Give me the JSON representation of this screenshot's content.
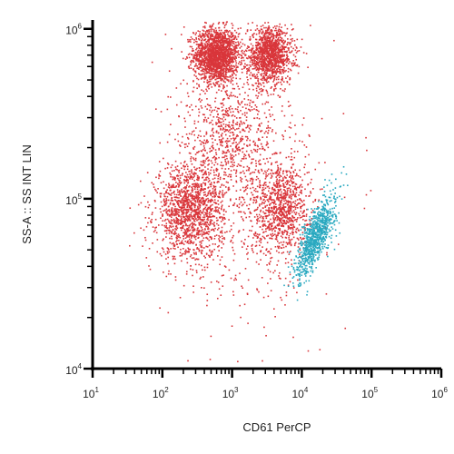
{
  "chart_data": {
    "type": "scatter",
    "title": "",
    "xlabel": "CD61 PerCP",
    "ylabel": "SS-A :: SS INT LIN",
    "x_scale": "log",
    "y_scale": "log",
    "xlim": [
      10,
      1000000
    ],
    "ylim": [
      10000,
      1100000
    ],
    "grid": false,
    "legend": "none",
    "x_ticks": [
      {
        "base": "10",
        "exp": "1",
        "value": 10
      },
      {
        "base": "10",
        "exp": "2",
        "value": 100
      },
      {
        "base": "10",
        "exp": "3",
        "value": 1000
      },
      {
        "base": "10",
        "exp": "4",
        "value": 10000
      },
      {
        "base": "10",
        "exp": "5",
        "value": 100000
      },
      {
        "base": "10",
        "exp": "6",
        "value": 1000000
      }
    ],
    "y_ticks": [
      {
        "base": "10",
        "exp": "4",
        "value": 10000
      },
      {
        "base": "10",
        "exp": "5",
        "value": 100000
      },
      {
        "base": "10",
        "exp": "6",
        "value": 1000000
      }
    ],
    "series": [
      {
        "color": "#d9363b",
        "clusters": [
          {
            "x": 600,
            "y": 700000,
            "count": 1800,
            "sx": 0.16,
            "sy": 0.08
          },
          {
            "x": 3500,
            "y": 700000,
            "count": 1300,
            "sx": 0.16,
            "sy": 0.08
          },
          {
            "x": 250,
            "y": 85000,
            "count": 1400,
            "sx": 0.24,
            "sy": 0.14
          },
          {
            "x": 5000,
            "y": 90000,
            "count": 900,
            "sx": 0.2,
            "sy": 0.14
          },
          {
            "x": 900,
            "y": 230000,
            "count": 500,
            "sx": 0.3,
            "sy": 0.16
          },
          {
            "x": 1500,
            "y": 120000,
            "count": 700,
            "sx": 0.55,
            "sy": 0.4
          }
        ]
      },
      {
        "color": "#2aa9c0",
        "clusters": [
          {
            "x": 16000,
            "y": 60000,
            "count": 900,
            "sx": 0.14,
            "sy": 0.12,
            "corr": 0.75
          }
        ]
      }
    ]
  }
}
